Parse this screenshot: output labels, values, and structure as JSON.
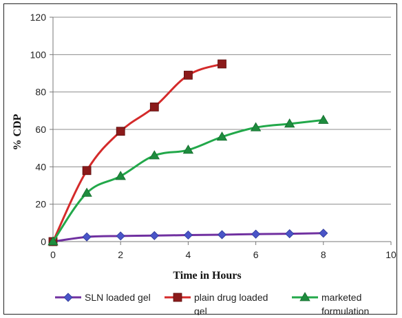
{
  "chart_data": {
    "type": "line",
    "title": "",
    "xlabel": "Time in Hours",
    "ylabel": "% CDP",
    "xlim": [
      0,
      10
    ],
    "ylim": [
      0,
      120
    ],
    "xticks": [
      0,
      2,
      4,
      6,
      8,
      10
    ],
    "yticks": [
      0,
      20,
      40,
      60,
      80,
      100,
      120
    ],
    "grid": "horizontal",
    "legend_position": "bottom",
    "series": [
      {
        "name": "SLN loaded gel",
        "legend_lines": [
          "SLN loaded gel"
        ],
        "color": "#7030a0",
        "marker_color": "#4a55c8",
        "marker": "diamond",
        "x": [
          0,
          1,
          2,
          3,
          4,
          5,
          6,
          7,
          8
        ],
        "y": [
          0,
          2.5,
          3,
          3.2,
          3.5,
          3.7,
          4,
          4.2,
          4.5
        ]
      },
      {
        "name": "plain drug loaded gel",
        "legend_lines": [
          "plain drug loaded",
          "gel"
        ],
        "color": "#d42a2a",
        "marker_color": "#8b1a1a",
        "marker": "square",
        "x": [
          0,
          1,
          2,
          3,
          4,
          5
        ],
        "y": [
          0,
          38,
          59,
          72,
          89,
          95
        ]
      },
      {
        "name": "marketed formulation",
        "legend_lines": [
          "marketed",
          "formulation"
        ],
        "color": "#22a84a",
        "marker_color": "#1e8c3e",
        "marker": "triangle",
        "x": [
          0,
          1,
          2,
          3,
          4,
          5,
          6,
          7,
          8
        ],
        "y": [
          0,
          26,
          35,
          46,
          49,
          56,
          61,
          63,
          65
        ]
      }
    ]
  }
}
